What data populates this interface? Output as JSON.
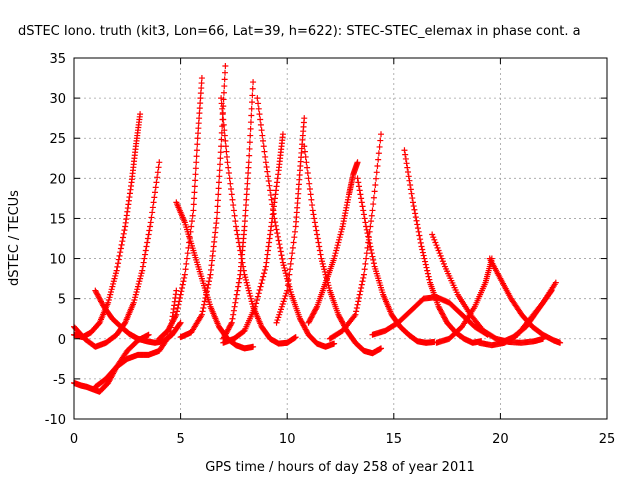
{
  "chart_data": {
    "type": "scatter",
    "title": "dSTEC Iono. truth (kit3, Lon=66, Lat=39, h=622): STEC-STEC_elemax in phase cont. a",
    "xlabel": "GPS time / hours of day 258 of year 2011",
    "ylabel": "dSTEC  / TECUs",
    "xlim": [
      0,
      25
    ],
    "ylim": [
      -10,
      35
    ],
    "xticks": [
      0,
      5,
      10,
      15,
      20,
      25
    ],
    "yticks": [
      -10,
      -5,
      0,
      5,
      10,
      15,
      20,
      25,
      30,
      35
    ],
    "grid": true,
    "marker": "plus",
    "color": "#ff0000",
    "series": [
      {
        "x": [
          0.0,
          0.4,
          0.8,
          1.2,
          1.6,
          2.0,
          2.4,
          2.7,
          2.9,
          3.1
        ],
        "y": [
          0.5,
          0.2,
          0.8,
          2.0,
          4.5,
          8.5,
          14.0,
          19.5,
          24.0,
          28.0
        ]
      },
      {
        "x": [
          0.0,
          0.3,
          0.6,
          0.9,
          1.2,
          1.6,
          2.0,
          2.5,
          3.0,
          3.5
        ],
        "y": [
          -5.5,
          -5.8,
          -6.0,
          -6.3,
          -6.6,
          -5.5,
          -3.5,
          -1.5,
          -0.2,
          0.5
        ]
      },
      {
        "x": [
          0.0,
          0.5,
          1.0,
          1.5,
          2.0,
          2.4,
          2.8,
          3.2,
          3.6,
          4.0
        ],
        "y": [
          1.5,
          0.0,
          -1.0,
          -0.5,
          0.5,
          2.0,
          4.5,
          8.5,
          14.5,
          22.0
        ]
      },
      {
        "x": [
          1.0,
          1.4,
          1.8,
          2.2,
          2.6,
          3.0,
          3.4,
          3.8,
          4.2,
          4.6,
          5.0
        ],
        "y": [
          6.0,
          4.0,
          2.5,
          1.5,
          0.6,
          0.0,
          -0.3,
          -0.5,
          -0.3,
          0.5,
          2.0
        ]
      },
      {
        "x": [
          1.0,
          1.5,
          2.0,
          2.5,
          3.0,
          3.5,
          4.0,
          4.5,
          4.8
        ],
        "y": [
          -6.0,
          -5.0,
          -3.5,
          -2.5,
          -2.0,
          -2.0,
          -1.5,
          0.5,
          6.0
        ]
      },
      {
        "x": [
          4.8,
          5.2,
          5.6,
          6.0,
          6.4,
          6.8,
          7.2,
          7.6,
          8.0,
          8.4
        ],
        "y": [
          17.0,
          14.5,
          11.0,
          7.5,
          4.0,
          1.5,
          0.0,
          -0.8,
          -1.2,
          -1.0
        ]
      },
      {
        "x": [
          4.0,
          4.4,
          4.8,
          5.2,
          5.6,
          5.8,
          6.0
        ],
        "y": [
          0.0,
          1.0,
          3.0,
          8.0,
          16.0,
          25.0,
          32.5
        ]
      },
      {
        "x": [
          5.0,
          5.5,
          6.0,
          6.4,
          6.7,
          6.9,
          7.1
        ],
        "y": [
          0.2,
          0.8,
          3.0,
          8.0,
          15.0,
          24.0,
          34.0
        ]
      },
      {
        "x": [
          6.9,
          7.2,
          7.6,
          8.0,
          8.4,
          8.8,
          9.2,
          9.6,
          10.0,
          10.4
        ],
        "y": [
          30.0,
          22.0,
          14.0,
          8.0,
          4.0,
          1.5,
          0.0,
          -0.6,
          -0.5,
          0.2
        ]
      },
      {
        "x": [
          7.0,
          7.4,
          7.8,
          8.0,
          8.2,
          8.4
        ],
        "y": [
          0.0,
          2.0,
          8.0,
          14.0,
          22.0,
          32.0
        ]
      },
      {
        "x": [
          8.6,
          9.0,
          9.4,
          9.8,
          10.2,
          10.6,
          11.0,
          11.4,
          11.8,
          12.2
        ],
        "y": [
          30.0,
          22.0,
          15.0,
          9.5,
          5.5,
          2.5,
          0.5,
          -0.6,
          -1.0,
          -0.6
        ]
      },
      {
        "x": [
          7.0,
          7.5,
          8.0,
          8.5,
          9.0,
          9.3,
          9.6,
          9.8
        ],
        "y": [
          -0.5,
          0.0,
          1.0,
          4.0,
          9.0,
          15.0,
          21.0,
          25.5
        ]
      },
      {
        "x": [
          9.5,
          10.0,
          10.4,
          10.6,
          10.8
        ],
        "y": [
          2.0,
          6.0,
          14.0,
          21.0,
          27.5
        ]
      },
      {
        "x": [
          10.8,
          11.2,
          11.6,
          12.0,
          12.4,
          12.8,
          13.2,
          13.6,
          14.0,
          14.4
        ],
        "y": [
          24.0,
          16.0,
          10.0,
          6.0,
          3.0,
          1.0,
          -0.5,
          -1.5,
          -1.8,
          -1.2
        ]
      },
      {
        "x": [
          11.0,
          11.4,
          11.8,
          12.2,
          12.6,
          12.9,
          13.1,
          13.3
        ],
        "y": [
          2.0,
          4.0,
          7.0,
          10.0,
          14.0,
          18.0,
          20.5,
          22.0
        ]
      },
      {
        "x": [
          13.3,
          13.7,
          14.1,
          14.5,
          14.9,
          15.3,
          15.7,
          16.1,
          16.5,
          16.9
        ],
        "y": [
          20.0,
          14.0,
          9.0,
          5.5,
          3.0,
          1.5,
          0.5,
          -0.3,
          -0.5,
          -0.4
        ]
      },
      {
        "x": [
          12.0,
          12.6,
          13.2,
          13.6,
          14.0,
          14.4
        ],
        "y": [
          0.0,
          1.0,
          3.0,
          8.0,
          16.0,
          25.5
        ]
      },
      {
        "x": [
          14.0,
          14.6,
          15.2,
          15.8,
          16.4,
          17.0,
          17.6,
          18.2,
          18.8,
          19.4
        ],
        "y": [
          0.5,
          1.0,
          2.0,
          3.5,
          5.0,
          5.2,
          4.5,
          3.0,
          1.5,
          0.5
        ]
      },
      {
        "x": [
          15.5,
          15.9,
          16.3,
          16.7,
          17.1,
          17.5,
          17.9,
          18.3,
          18.7,
          19.1
        ],
        "y": [
          23.5,
          17.0,
          11.5,
          7.0,
          4.0,
          2.0,
          0.8,
          0.0,
          -0.5,
          -0.3
        ]
      },
      {
        "x": [
          16.8,
          17.4,
          18.0,
          18.6,
          19.2,
          19.8,
          20.4,
          21.0,
          21.6,
          22.0
        ],
        "y": [
          13.0,
          9.0,
          5.5,
          3.0,
          1.0,
          0.0,
          -0.4,
          -0.5,
          -0.3,
          0.0
        ]
      },
      {
        "x": [
          17.0,
          17.6,
          18.2,
          18.8,
          19.3,
          19.6
        ],
        "y": [
          -0.5,
          0.0,
          1.5,
          4.0,
          7.0,
          10.0
        ]
      },
      {
        "x": [
          19.5,
          20.0,
          20.5,
          21.0,
          21.5,
          22.0,
          22.5,
          22.8
        ],
        "y": [
          10.0,
          7.5,
          5.0,
          3.0,
          1.5,
          0.5,
          -0.2,
          -0.5
        ]
      },
      {
        "x": [
          19.0,
          19.6,
          20.2,
          20.8,
          21.4,
          22.0,
          22.6
        ],
        "y": [
          -0.5,
          -0.8,
          -0.5,
          0.5,
          2.5,
          4.5,
          7.0
        ]
      },
      {
        "x": [
          20.0,
          20.6,
          21.2,
          21.6,
          22.0,
          22.4
        ],
        "y": [
          -0.5,
          0.2,
          1.5,
          3.0,
          4.5,
          6.0
        ]
      }
    ]
  }
}
